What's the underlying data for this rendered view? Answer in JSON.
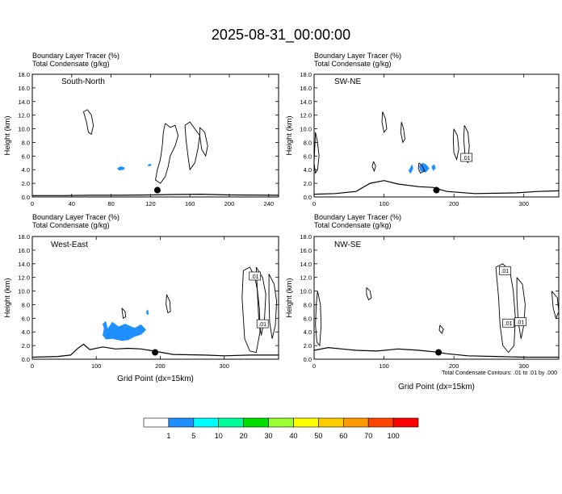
{
  "title": "2025-08-31_00:00:00",
  "colors": {
    "contour": "#000000",
    "tracer": "#1e90ff",
    "frame": "#000000"
  },
  "footnote": "Total Condensate Contours: .01 to .01 by .000",
  "colorbar": {
    "ticks": [
      "1",
      "5",
      "10",
      "20",
      "30",
      "40",
      "50",
      "60",
      "70",
      "100"
    ],
    "colors": [
      "#ffffff",
      "#1e90ff",
      "#00ffff",
      "#00ff99",
      "#00e000",
      "#99ff33",
      "#ffff00",
      "#ffcc00",
      "#ff9900",
      "#ff4400",
      "#ff0000"
    ]
  },
  "chart_data": [
    {
      "type": "contour",
      "label1": "Boundary Layer Tracer   (%)",
      "label2": "Total Condensate   (g/kg)",
      "subtitle": "South-North",
      "xlabel": "",
      "ylabel": "Height (km)",
      "xlim": [
        0,
        250
      ],
      "ylim": [
        0,
        18
      ],
      "xticks": [
        0,
        40,
        80,
        120,
        160,
        200,
        240
      ],
      "yticks": [
        "0.0",
        "2.0",
        "4.0",
        "6.0",
        "8.0",
        "10.0",
        "12.0",
        "14.0",
        "16.0",
        "18.0"
      ],
      "site_marker": [
        127,
        1.0
      ],
      "terrain": [
        [
          0,
          0.2
        ],
        [
          30,
          0.2
        ],
        [
          60,
          0.25
        ],
        [
          90,
          0.25
        ],
        [
          120,
          0.3
        ],
        [
          140,
          0.35
        ],
        [
          170,
          0.4
        ],
        [
          200,
          0.3
        ],
        [
          250,
          0.25
        ]
      ],
      "contours": [
        [
          [
            52,
            12.5
          ],
          [
            55,
            11.0
          ],
          [
            57,
            9.5
          ],
          [
            60,
            9.2
          ],
          [
            62,
            10.5
          ],
          [
            60,
            12.0
          ],
          [
            56,
            12.8
          ],
          [
            52,
            12.5
          ]
        ],
        [
          [
            135,
            10.8
          ],
          [
            140,
            10.2
          ],
          [
            145,
            10.5
          ],
          [
            148,
            9.0
          ],
          [
            145,
            7.5
          ],
          [
            140,
            6.0
          ],
          [
            138,
            4.5
          ],
          [
            135,
            3.0
          ],
          [
            130,
            2.0
          ],
          [
            125,
            2.5
          ],
          [
            127,
            4.0
          ],
          [
            130,
            5.5
          ],
          [
            132,
            7.5
          ],
          [
            133,
            9.5
          ],
          [
            135,
            10.8
          ]
        ],
        [
          [
            155,
            10.5
          ],
          [
            160,
            11.0
          ],
          [
            165,
            10.0
          ],
          [
            170,
            9.0
          ],
          [
            168,
            7.0
          ],
          [
            165,
            5.0
          ],
          [
            160,
            4.0
          ],
          [
            158,
            6.0
          ],
          [
            156,
            8.5
          ],
          [
            155,
            10.5
          ]
        ],
        [
          [
            170,
            10.2
          ],
          [
            175,
            9.5
          ],
          [
            178,
            7.5
          ],
          [
            176,
            6.0
          ],
          [
            172,
            7.0
          ],
          [
            170,
            9.0
          ],
          [
            170,
            10.2
          ]
        ]
      ],
      "tracer": [
        [
          [
            86,
            4.2
          ],
          [
            90,
            4.5
          ],
          [
            94,
            4.3
          ],
          [
            93,
            4.0
          ],
          [
            88,
            3.9
          ],
          [
            86,
            4.2
          ]
        ],
        [
          [
            117,
            4.7
          ],
          [
            120,
            4.9
          ],
          [
            121,
            4.6
          ],
          [
            118,
            4.5
          ],
          [
            117,
            4.7
          ]
        ]
      ],
      "labels": []
    },
    {
      "type": "contour",
      "label1": "Boundary Layer Tracer   (%)",
      "label2": "Total Condensate   (g/kg)",
      "subtitle": "SW-NE",
      "xlabel": "",
      "ylabel": "Height (km)",
      "xlim": [
        0,
        350
      ],
      "ylim": [
        0,
        18
      ],
      "xticks": [
        0,
        100,
        200,
        300
      ],
      "yticks": [
        "0.0",
        "2.0",
        "4.0",
        "6.0",
        "8.0",
        "10.0",
        "12.0",
        "14.0",
        "16.0",
        "18.0"
      ],
      "site_marker": [
        175,
        1.0
      ],
      "terrain": [
        [
          0,
          0.4
        ],
        [
          30,
          0.5
        ],
        [
          60,
          0.8
        ],
        [
          80,
          2.0
        ],
        [
          100,
          2.4
        ],
        [
          120,
          1.9
        ],
        [
          150,
          1.5
        ],
        [
          170,
          1.4
        ],
        [
          190,
          0.8
        ],
        [
          230,
          0.5
        ],
        [
          290,
          0.6
        ],
        [
          320,
          0.8
        ],
        [
          350,
          0.9
        ]
      ],
      "contours": [
        [
          [
            2,
            9.5
          ],
          [
            5,
            8.0
          ],
          [
            7,
            6.0
          ],
          [
            5,
            4.0
          ],
          [
            2,
            3.5
          ],
          [
            0,
            5.0
          ],
          [
            2,
            9.5
          ]
        ],
        [
          [
            98,
            12.5
          ],
          [
            102,
            11.5
          ],
          [
            104,
            10.0
          ],
          [
            100,
            9.5
          ],
          [
            97,
            11.0
          ],
          [
            98,
            12.5
          ]
        ],
        [
          [
            125,
            11.0
          ],
          [
            128,
            10.0
          ],
          [
            130,
            8.5
          ],
          [
            127,
            8.0
          ],
          [
            124,
            9.5
          ],
          [
            125,
            11.0
          ]
        ],
        [
          [
            200,
            10.0
          ],
          [
            205,
            9.0
          ],
          [
            207,
            7.0
          ],
          [
            204,
            5.5
          ],
          [
            200,
            6.5
          ],
          [
            199,
            8.5
          ],
          [
            200,
            10.0
          ]
        ],
        [
          [
            215,
            10.5
          ],
          [
            220,
            9.5
          ],
          [
            222,
            7.5
          ],
          [
            220,
            5.0
          ],
          [
            216,
            6.0
          ],
          [
            214,
            8.5
          ],
          [
            215,
            10.5
          ]
        ],
        [
          [
            150,
            5.0
          ],
          [
            155,
            4.5
          ],
          [
            158,
            3.8
          ],
          [
            152,
            3.5
          ],
          [
            149,
            4.2
          ],
          [
            150,
            5.0
          ]
        ],
        [
          [
            85,
            5.2
          ],
          [
            88,
            4.5
          ],
          [
            86,
            3.8
          ],
          [
            83,
            4.5
          ],
          [
            85,
            5.2
          ]
        ]
      ],
      "tracer": [
        [
          [
            150,
            4.5
          ],
          [
            155,
            5.0
          ],
          [
            160,
            4.8
          ],
          [
            165,
            4.2
          ],
          [
            160,
            3.6
          ],
          [
            152,
            3.8
          ],
          [
            150,
            4.5
          ]
        ],
        [
          [
            135,
            3.8
          ],
          [
            140,
            4.8
          ],
          [
            142,
            4.2
          ],
          [
            138,
            3.4
          ],
          [
            135,
            3.8
          ]
        ],
        [
          [
            168,
            4.5
          ],
          [
            172,
            4.8
          ],
          [
            174,
            4.2
          ],
          [
            170,
            3.8
          ],
          [
            168,
            4.5
          ]
        ]
      ],
      "labels": [
        {
          "text": ".01",
          "at": [
            218,
            5.8
          ]
        }
      ]
    },
    {
      "type": "contour",
      "label1": "Boundary Layer Tracer   (%)",
      "label2": "Total Condensate   (g/kg)",
      "subtitle": "West-East",
      "xlabel": "Grid Point (dx=15km)",
      "ylabel": "Height (km)",
      "xlim": [
        0,
        385
      ],
      "ylim": [
        0,
        18
      ],
      "xticks": [
        0,
        100,
        200,
        300
      ],
      "yticks": [
        "0.0",
        "2.0",
        "4.0",
        "6.0",
        "8.0",
        "10.0",
        "12.0",
        "14.0",
        "16.0",
        "18.0"
      ],
      "site_marker": [
        192,
        1.0
      ],
      "terrain": [
        [
          0,
          0.3
        ],
        [
          40,
          0.4
        ],
        [
          60,
          0.6
        ],
        [
          70,
          1.5
        ],
        [
          80,
          2.2
        ],
        [
          90,
          1.4
        ],
        [
          110,
          1.8
        ],
        [
          130,
          1.5
        ],
        [
          150,
          1.6
        ],
        [
          170,
          1.5
        ],
        [
          190,
          1.2
        ],
        [
          220,
          0.7
        ],
        [
          270,
          0.6
        ],
        [
          300,
          0.5
        ],
        [
          340,
          0.6
        ],
        [
          385,
          0.6
        ]
      ],
      "contours": [
        [
          [
            330,
            13.0
          ],
          [
            340,
            13.5
          ],
          [
            348,
            12.0
          ],
          [
            352,
            10.0
          ],
          [
            355,
            7.5
          ],
          [
            356,
            4.0
          ],
          [
            350,
            1.0
          ],
          [
            340,
            1.2
          ],
          [
            332,
            3.0
          ],
          [
            330,
            6.0
          ],
          [
            328,
            9.0
          ],
          [
            330,
            13.0
          ]
        ],
        [
          [
            350,
            13.5
          ],
          [
            360,
            12.0
          ],
          [
            365,
            9.5
          ],
          [
            363,
            6.0
          ],
          [
            358,
            3.5
          ],
          [
            354,
            6.0
          ],
          [
            352,
            9.5
          ],
          [
            350,
            13.5
          ]
        ],
        [
          [
            370,
            12.5
          ],
          [
            378,
            11.0
          ],
          [
            382,
            8.5
          ],
          [
            380,
            5.0
          ],
          [
            375,
            3.0
          ],
          [
            371,
            5.5
          ],
          [
            370,
            9.0
          ],
          [
            370,
            12.5
          ]
        ],
        [
          [
            210,
            9.5
          ],
          [
            215,
            8.5
          ],
          [
            216,
            7.0
          ],
          [
            212,
            6.8
          ],
          [
            209,
            8.0
          ],
          [
            210,
            9.5
          ]
        ],
        [
          [
            140,
            7.5
          ],
          [
            145,
            7.0
          ],
          [
            146,
            6.2
          ],
          [
            142,
            6.0
          ],
          [
            140,
            7.5
          ]
        ]
      ],
      "tracer": [
        [
          [
            110,
            5.2
          ],
          [
            115,
            5.6
          ],
          [
            118,
            4.5
          ],
          [
            125,
            5.5
          ],
          [
            135,
            4.8
          ],
          [
            145,
            5.2
          ],
          [
            160,
            4.6
          ],
          [
            170,
            5.1
          ],
          [
            178,
            4.3
          ],
          [
            170,
            3.6
          ],
          [
            160,
            3.3
          ],
          [
            150,
            2.8
          ],
          [
            140,
            2.7
          ],
          [
            125,
            3.0
          ],
          [
            115,
            2.9
          ],
          [
            110,
            3.5
          ],
          [
            112,
            4.5
          ],
          [
            110,
            5.2
          ]
        ],
        [
          [
            178,
            7.0
          ],
          [
            181,
            7.3
          ],
          [
            182,
            6.6
          ],
          [
            179,
            6.5
          ],
          [
            178,
            7.0
          ]
        ]
      ],
      "labels": [
        {
          "text": ".01",
          "at": [
            348,
            12.2
          ]
        },
        {
          "text": ".01",
          "at": [
            360,
            5.2
          ]
        }
      ]
    },
    {
      "type": "contour",
      "label1": "Boundary Layer Tracer   (%)",
      "label2": "Total Condensate   (g/kg)",
      "subtitle": "NW-SE",
      "xlabel": "Grid Point (dx=15km)",
      "ylabel": "Height (km)",
      "xlim": [
        0,
        350
      ],
      "ylim": [
        0,
        18
      ],
      "xticks": [
        0,
        100,
        200,
        300
      ],
      "yticks": [
        "0.0",
        "2.0",
        "4.0",
        "6.0",
        "8.0",
        "10.0",
        "12.0",
        "14.0",
        "16.0",
        "18.0"
      ],
      "site_marker": [
        178,
        1.0
      ],
      "terrain": [
        [
          0,
          1.3
        ],
        [
          20,
          1.7
        ],
        [
          40,
          1.5
        ],
        [
          60,
          1.3
        ],
        [
          90,
          1.2
        ],
        [
          120,
          1.5
        ],
        [
          150,
          1.3
        ],
        [
          170,
          1.1
        ],
        [
          190,
          0.8
        ],
        [
          220,
          0.5
        ],
        [
          260,
          0.4
        ],
        [
          300,
          0.3
        ],
        [
          350,
          0.3
        ]
      ],
      "contours": [
        [
          [
            5,
            10.0
          ],
          [
            9,
            8.0
          ],
          [
            10,
            5.0
          ],
          [
            8,
            2.0
          ],
          [
            4,
            2.5
          ],
          [
            2,
            5.0
          ],
          [
            3,
            8.0
          ],
          [
            5,
            10.0
          ]
        ],
        [
          [
            260,
            13.5
          ],
          [
            270,
            14.0
          ],
          [
            280,
            13.0
          ],
          [
            285,
            10.0
          ],
          [
            288,
            6.0
          ],
          [
            286,
            2.0
          ],
          [
            278,
            1.0
          ],
          [
            270,
            2.0
          ],
          [
            266,
            5.0
          ],
          [
            264,
            9.0
          ],
          [
            260,
            13.5
          ]
        ],
        [
          [
            290,
            12.0
          ],
          [
            298,
            11.0
          ],
          [
            302,
            8.0
          ],
          [
            300,
            5.0
          ],
          [
            296,
            3.0
          ],
          [
            292,
            5.5
          ],
          [
            290,
            9.0
          ],
          [
            290,
            12.0
          ]
        ],
        [
          [
            340,
            10.0
          ],
          [
            348,
            9.0
          ],
          [
            350,
            7.0
          ],
          [
            346,
            6.0
          ],
          [
            342,
            7.5
          ],
          [
            340,
            10.0
          ]
        ],
        [
          [
            75,
            10.5
          ],
          [
            80,
            10.0
          ],
          [
            82,
            9.0
          ],
          [
            78,
            8.7
          ],
          [
            75,
            9.5
          ],
          [
            75,
            10.5
          ]
        ],
        [
          [
            180,
            5.0
          ],
          [
            185,
            4.4
          ],
          [
            183,
            3.8
          ],
          [
            179,
            4.2
          ],
          [
            180,
            5.0
          ]
        ]
      ],
      "tracer": [],
      "labels": [
        {
          "text": ".01",
          "at": [
            273,
            13.0
          ]
        },
        {
          "text": ".01",
          "at": [
            278,
            5.3
          ]
        },
        {
          "text": ".01",
          "at": [
            295,
            5.5
          ]
        }
      ]
    }
  ]
}
